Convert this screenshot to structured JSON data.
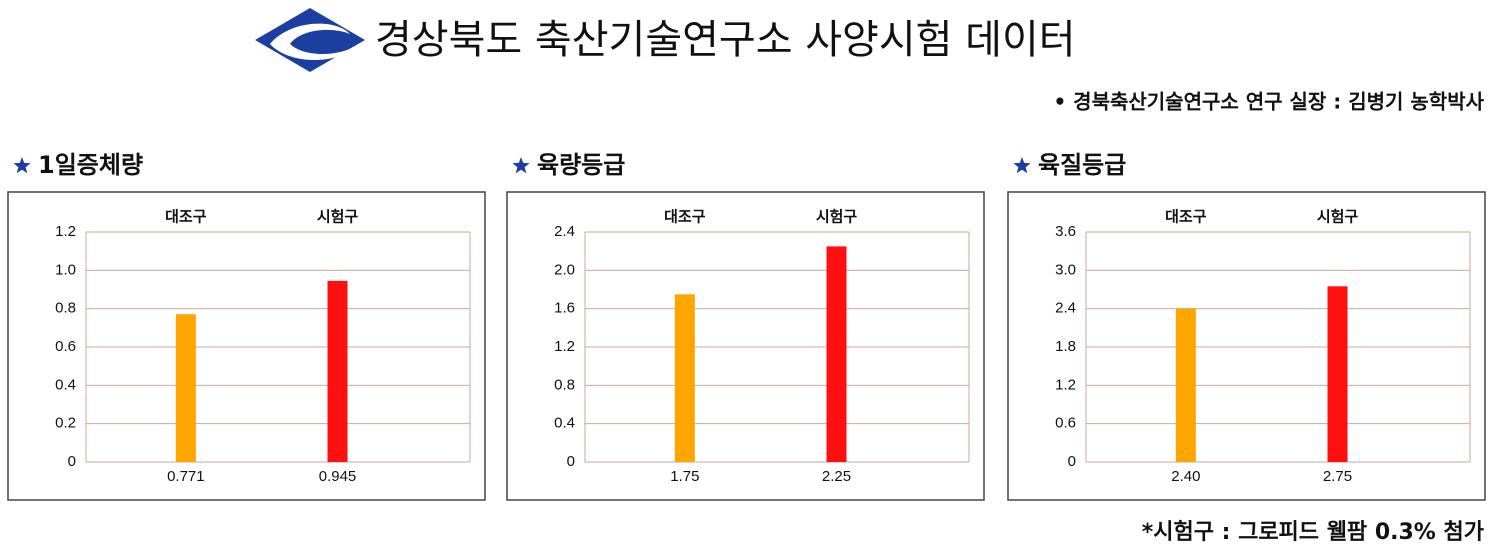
{
  "header": {
    "title": "경상북도 축산기술연구소 사양시험 데이터",
    "subtitle": "• 경북축산기술연구소 연구 실장 : 김병기 농학박사"
  },
  "footnote": "*시험구 : 그로피드 웰팜 0.3% 첨가",
  "chart_data": [
    {
      "type": "bar",
      "title": "1일증체량",
      "categories": [
        "대조구",
        "시험구"
      ],
      "values": [
        0.771,
        0.945
      ],
      "colors": [
        "#ffa500",
        "#ff1010"
      ],
      "ylim": [
        0,
        1.2
      ],
      "yticks": [
        0,
        0.2,
        0.4,
        0.6,
        0.8,
        {
          "value": 1,
          "label": "1.0"
        },
        1.2
      ],
      "grid": true
    },
    {
      "type": "bar",
      "title": "육량등급",
      "categories": [
        "대조구",
        "시험구"
      ],
      "values": [
        1.75,
        2.25
      ],
      "colors": [
        "#ffa500",
        "#ff1010"
      ],
      "ylim": [
        0,
        2.4
      ],
      "yticks": [
        0,
        0.4,
        0.8,
        1.2,
        1.6,
        {
          "value": 2,
          "label": "2.0"
        },
        2.4
      ],
      "grid": true
    },
    {
      "type": "bar",
      "title": "육질등급",
      "categories": [
        "대조구",
        "시험구"
      ],
      "values": [
        2.4,
        2.75
      ],
      "value_labels": [
        "2.40",
        "2.75"
      ],
      "colors": [
        "#ffa500",
        "#ff1010"
      ],
      "ylim": [
        0,
        3.6
      ],
      "yticks": [
        0,
        0.6,
        1.2,
        1.8,
        2.4,
        {
          "value": 3,
          "label": "3.0"
        },
        3.6
      ],
      "grid": true
    }
  ]
}
